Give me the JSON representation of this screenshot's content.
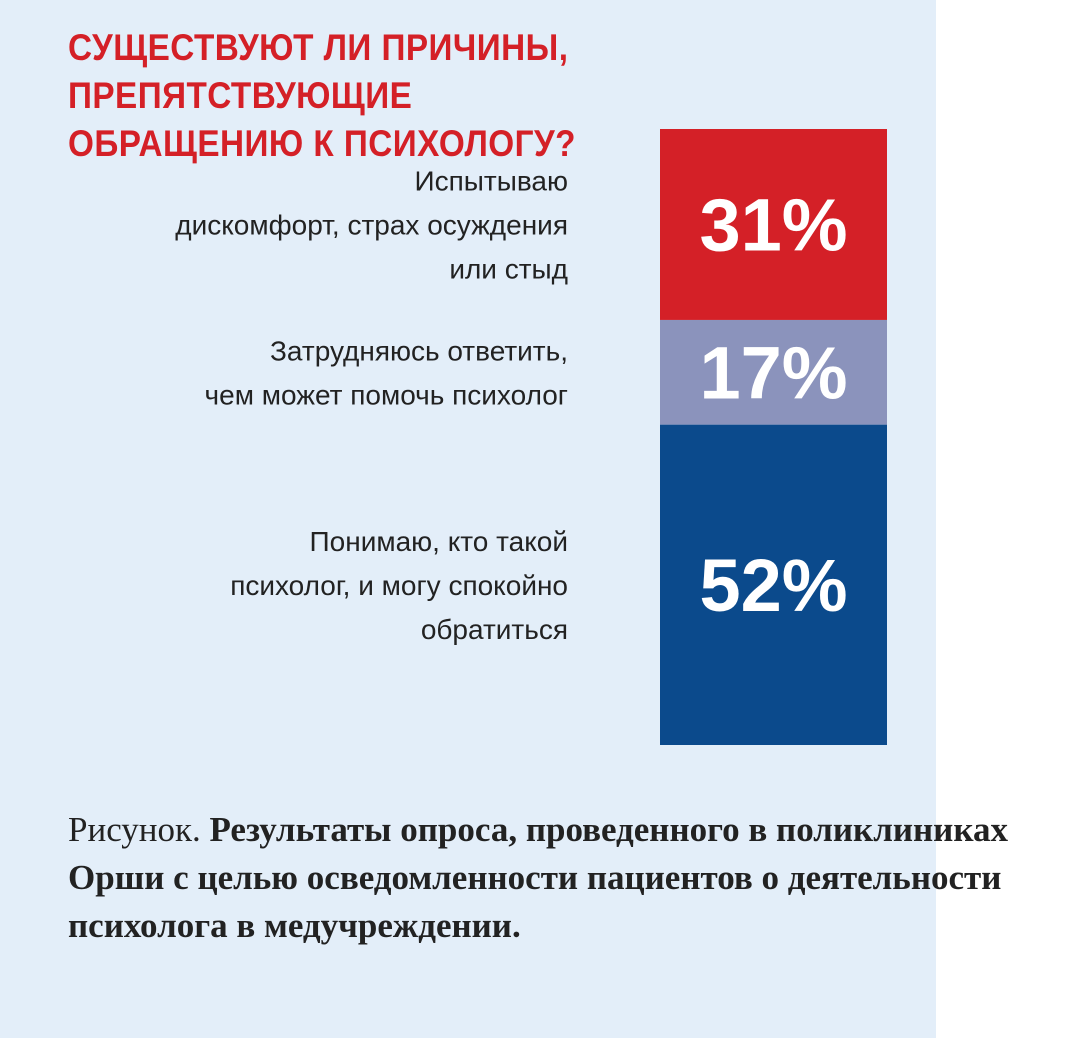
{
  "title": {
    "line1": "СУЩЕСТВУЮТ ЛИ ПРИЧИНЫ, ПРЕПЯТСТВУЮЩИЕ",
    "line2": "ОБРАЩЕНИЮ К ПСИХОЛОГУ?"
  },
  "colors": {
    "title": "#d42027",
    "panel_background": "#e3eef9"
  },
  "chart_data": {
    "type": "bar",
    "stacked": true,
    "orientation": "vertical",
    "unit": "%",
    "categories": [
      "Испытываю дискомфорт, страх осуждения или стыд",
      "Затрудняюсь ответить, чем может помочь психолог",
      "Понимаю, кто такой психолог, и могу спокойно обратиться"
    ],
    "category_lines": [
      [
        "Испытываю",
        "дискомфорт, страх осуждения",
        "или стыд"
      ],
      [
        "Затрудняюсь ответить,",
        "чем может помочь психолог"
      ],
      [
        "Понимаю, кто такой",
        "психолог, и могу спокойно",
        "обратиться"
      ]
    ],
    "values": [
      31,
      17,
      52
    ],
    "value_labels": [
      "31%",
      "17%",
      "52%"
    ],
    "colors": [
      "#d42027",
      "#8b93bc",
      "#0b4a8c"
    ],
    "ylim": [
      0,
      100
    ]
  },
  "caption": {
    "prefix": "Рисунок.",
    "text": "Результаты опроса, проведенного в поликлиниках Орши с целью осведомленности пациентов о деятельности психолога в медучреждении."
  }
}
